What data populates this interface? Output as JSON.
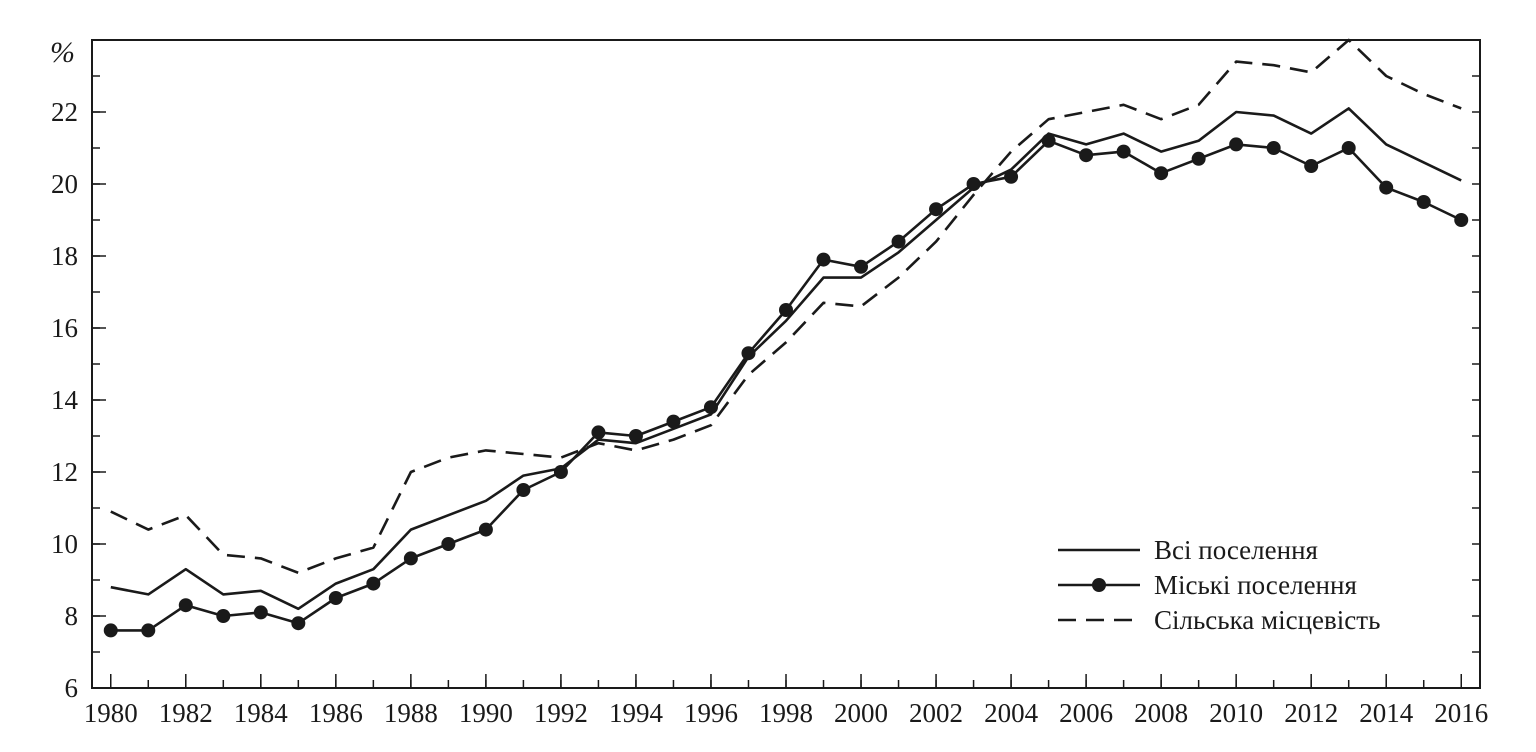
{
  "chart_data": {
    "type": "line",
    "title": "",
    "xlabel": "",
    "ylabel": "%",
    "xlim": [
      1979.5,
      2016.5
    ],
    "ylim": [
      6,
      24
    ],
    "x": [
      1980,
      1981,
      1982,
      1983,
      1984,
      1985,
      1986,
      1987,
      1988,
      1989,
      1990,
      1991,
      1992,
      1993,
      1994,
      1995,
      1996,
      1997,
      1998,
      1999,
      2000,
      2001,
      2002,
      2003,
      2004,
      2005,
      2006,
      2007,
      2008,
      2009,
      2010,
      2011,
      2012,
      2013,
      2014,
      2015,
      2016
    ],
    "x_ticks": [
      "1980",
      "1982",
      "1984",
      "1986",
      "1988",
      "1990",
      "1992",
      "1994",
      "1996",
      "1998",
      "2000",
      "2002",
      "2004",
      "2006",
      "2008",
      "2010",
      "2012",
      "2014",
      "2016"
    ],
    "y_ticks": [
      "6",
      "8",
      "10",
      "12",
      "14",
      "16",
      "18",
      "20",
      "22"
    ],
    "grid": false,
    "legend_position": "bottom-right",
    "series": [
      {
        "name": "Всі поселення",
        "style": "solid",
        "values": [
          8.8,
          8.6,
          9.3,
          8.6,
          8.7,
          8.2,
          8.9,
          9.3,
          10.4,
          10.8,
          11.2,
          11.9,
          12.1,
          12.9,
          12.8,
          13.2,
          13.6,
          15.2,
          16.2,
          17.4,
          17.4,
          18.1,
          19.0,
          19.9,
          20.4,
          21.4,
          21.1,
          21.4,
          20.9,
          21.2,
          22.0,
          21.9,
          21.4,
          22.1,
          21.1,
          20.6,
          20.1
        ]
      },
      {
        "name": "Міські поселення",
        "style": "solid-markers",
        "values": [
          7.6,
          7.6,
          8.3,
          8.0,
          8.1,
          7.8,
          8.5,
          8.9,
          9.6,
          10.0,
          10.4,
          11.5,
          12.0,
          13.1,
          13.0,
          13.4,
          13.8,
          15.3,
          16.5,
          17.9,
          17.7,
          18.4,
          19.3,
          20.0,
          20.2,
          21.2,
          20.8,
          20.9,
          20.3,
          20.7,
          21.1,
          21.0,
          20.5,
          21.0,
          19.9,
          19.5,
          19.0
        ]
      },
      {
        "name": "Сільська місцевість",
        "style": "dashed",
        "values": [
          10.9,
          10.4,
          10.8,
          9.7,
          9.6,
          9.2,
          9.6,
          9.9,
          12.0,
          12.4,
          12.6,
          12.5,
          12.4,
          12.8,
          12.6,
          12.9,
          13.3,
          14.7,
          15.6,
          16.7,
          16.6,
          17.4,
          18.4,
          19.7,
          20.9,
          21.8,
          22.0,
          22.2,
          21.8,
          22.2,
          23.4,
          23.3,
          23.1,
          24.0,
          23.0,
          22.5,
          22.1
        ]
      }
    ],
    "colors": {
      "line": "#1a1a1a",
      "background": "#ffffff"
    }
  }
}
